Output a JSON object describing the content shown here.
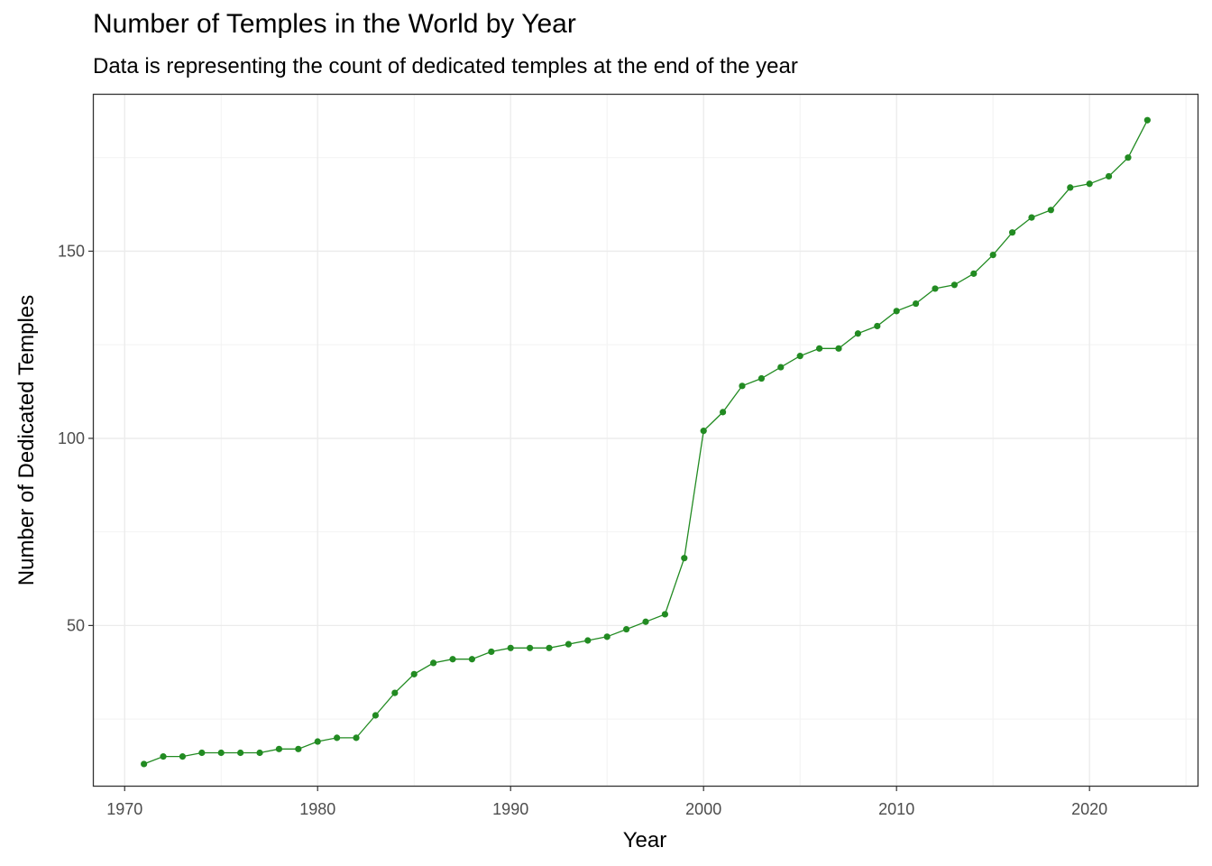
{
  "chart_data": {
    "type": "line",
    "title": "Number of Temples in the World by Year",
    "subtitle": "Data is representing the count of dedicated temples at the end of the year",
    "xlabel": "Year",
    "ylabel": "Number of Dedicated Temples",
    "xlim": [
      1968.4,
      2025.6
    ],
    "ylim": [
      7.2,
      191.8
    ],
    "x_ticks": [
      1970,
      1980,
      1990,
      2000,
      2010,
      2020
    ],
    "y_ticks": [
      50,
      100,
      150
    ],
    "grid": true,
    "legend": "none",
    "series": [
      {
        "color": "#228B22",
        "x": [
          1971,
          1972,
          1973,
          1974,
          1975,
          1976,
          1977,
          1978,
          1979,
          1980,
          1981,
          1982,
          1983,
          1984,
          1985,
          1986,
          1987,
          1988,
          1989,
          1990,
          1991,
          1992,
          1993,
          1994,
          1995,
          1996,
          1997,
          1998,
          1999,
          2000,
          2001,
          2002,
          2003,
          2004,
          2005,
          2006,
          2007,
          2008,
          2009,
          2010,
          2011,
          2012,
          2013,
          2014,
          2015,
          2016,
          2017,
          2018,
          2019,
          2020,
          2021,
          2022,
          2023
        ],
        "values": [
          13,
          15,
          15,
          16,
          16,
          16,
          16,
          17,
          17,
          19,
          20,
          20,
          26,
          32,
          37,
          40,
          41,
          41,
          43,
          44,
          44,
          44,
          45,
          46,
          47,
          49,
          51,
          53,
          68,
          102,
          107,
          114,
          116,
          119,
          122,
          124,
          124,
          128,
          130,
          134,
          136,
          140,
          141,
          144,
          149,
          155,
          159,
          161,
          167,
          168,
          170,
          175,
          185
        ]
      }
    ]
  }
}
